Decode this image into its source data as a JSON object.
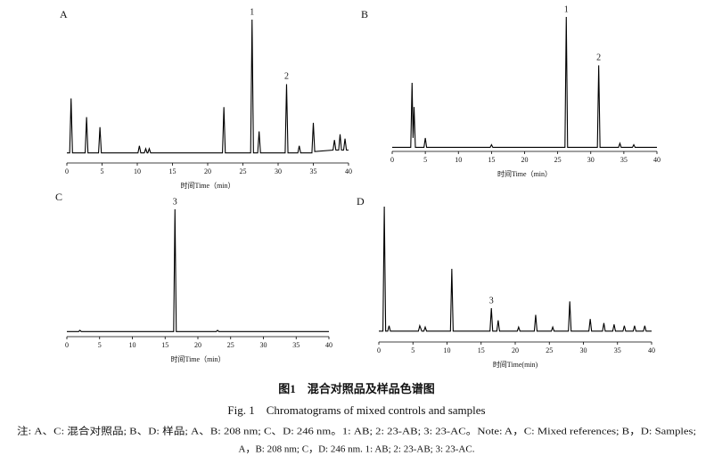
{
  "chart_data": [
    {
      "type": "line",
      "panel": "A",
      "x_label": "时间Time（min）",
      "color": "#000000",
      "xlim": [
        0,
        40
      ],
      "xticks": [
        0,
        5,
        10,
        15,
        20,
        25,
        30,
        35,
        40
      ],
      "ylim": [
        0,
        100
      ],
      "x": [
        0,
        0.4,
        0.6,
        0.8,
        2.6,
        2.8,
        3.0,
        4.5,
        4.7,
        4.9,
        10.1,
        10.3,
        10.5,
        11.0,
        11.2,
        11.4,
        11.5,
        11.7,
        11.9,
        22.1,
        22.3,
        22.5,
        26.1,
        26.3,
        26.5,
        27.1,
        27.3,
        27.5,
        31.0,
        31.2,
        31.4,
        32.8,
        33.0,
        33.2,
        34.8,
        35.0,
        35.2,
        37.8,
        38.0,
        38.2,
        38.6,
        38.8,
        39.0,
        39.3,
        39.5,
        39.7,
        40
      ],
      "values": [
        7,
        7,
        45,
        7,
        7,
        32,
        7,
        7,
        25,
        7,
        7,
        12,
        7,
        7,
        10,
        7,
        7,
        10,
        7,
        7,
        39,
        7,
        7,
        100,
        7,
        7,
        22,
        7,
        7,
        55,
        7,
        7,
        12,
        7,
        7,
        28,
        8,
        9,
        16,
        9,
        9,
        20,
        9,
        9,
        17,
        9,
        9
      ],
      "peak_labels": [
        {
          "text": "1",
          "x": 26.3
        },
        {
          "text": "2",
          "x": 31.2
        }
      ]
    },
    {
      "type": "line",
      "panel": "B",
      "x_label": "时间Time（min）",
      "color": "#000000",
      "xlim": [
        0,
        40
      ],
      "xticks": [
        0,
        5,
        10,
        15,
        20,
        25,
        30,
        35,
        40
      ],
      "ylim": [
        0,
        100
      ],
      "x": [
        0,
        2.8,
        3.0,
        3.15,
        3.3,
        3.5,
        4.8,
        5.0,
        5.2,
        14.8,
        15.0,
        15.2,
        26.1,
        26.3,
        26.5,
        31.0,
        31.2,
        31.4,
        34.2,
        34.4,
        34.6,
        36.3,
        36.5,
        36.7,
        40
      ],
      "values": [
        3,
        3,
        51,
        10,
        33,
        3,
        3,
        10,
        3,
        3,
        5,
        3,
        3,
        100,
        3,
        3,
        64,
        3,
        3,
        6,
        3,
        3,
        5,
        3,
        3
      ],
      "peak_labels": [
        {
          "text": "1",
          "x": 26.3
        },
        {
          "text": "2",
          "x": 31.2
        }
      ]
    },
    {
      "type": "line",
      "panel": "C",
      "x_label": "时间Time（min）",
      "color": "#000000",
      "xlim": [
        0,
        40
      ],
      "xticks": [
        0,
        5,
        10,
        15,
        20,
        25,
        30,
        35,
        40
      ],
      "ylim": [
        0,
        100
      ],
      "x": [
        0,
        1.8,
        2.0,
        2.2,
        16.3,
        16.5,
        16.7,
        22.8,
        23.0,
        23.2,
        40
      ],
      "values": [
        4,
        4,
        5,
        4,
        4,
        100,
        4,
        4,
        5,
        4,
        4
      ],
      "peak_labels": [
        {
          "text": "3",
          "x": 16.5
        }
      ]
    },
    {
      "type": "line",
      "panel": "D",
      "x_label": "时间Time(min)",
      "color": "#000000",
      "xlim": [
        0,
        40
      ],
      "xticks": [
        0,
        5,
        10,
        15,
        20,
        25,
        30,
        35,
        40
      ],
      "ylim": [
        0,
        100
      ],
      "x": [
        0,
        0.6,
        0.8,
        1.0,
        1.3,
        1.5,
        1.7,
        5.8,
        6.0,
        6.3,
        6.6,
        6.8,
        7.0,
        10.5,
        10.7,
        10.9,
        16.3,
        16.5,
        16.7,
        17.3,
        17.5,
        17.7,
        20.3,
        20.5,
        20.7,
        22.8,
        23.0,
        23.2,
        25.3,
        25.5,
        25.7,
        27.8,
        28.0,
        28.2,
        30.8,
        31.0,
        31.2,
        32.8,
        33.0,
        33.2,
        34.3,
        34.5,
        34.7,
        35.8,
        36.0,
        36.2,
        37.3,
        37.5,
        37.7,
        38.8,
        39.0,
        39.2,
        40
      ],
      "values": [
        8,
        8,
        100,
        8,
        8,
        12,
        8,
        8,
        12,
        8,
        8,
        11,
        8,
        8,
        54,
        8,
        8,
        25,
        8,
        8,
        16,
        8,
        8,
        11,
        8,
        8,
        20,
        8,
        8,
        11,
        8,
        8,
        30,
        8,
        8,
        17,
        8,
        8,
        14,
        8,
        8,
        13,
        8,
        8,
        12,
        8,
        8,
        12,
        8,
        8,
        12,
        8,
        8
      ],
      "peak_labels": [
        {
          "text": "3",
          "x": 16.5
        }
      ]
    }
  ],
  "figure_caption": {
    "title_cn": "图1　混合对照品及样品色谱图",
    "title_en": "Fig. 1　Chromatograms of mixed controls and samples",
    "note": [
      "注: A、C: 混合对照品; B、D: 样品; A、B: 208 nm; C、D: 246 nm。1: AB; 2: 23-AB; 3: 23-AC。Note: A，C: Mixed references; B，D: Samples;",
      "A，B: 208 nm; C，D: 246 nm. 1: AB; 2: 23-AB; 3: 23-AC."
    ]
  }
}
